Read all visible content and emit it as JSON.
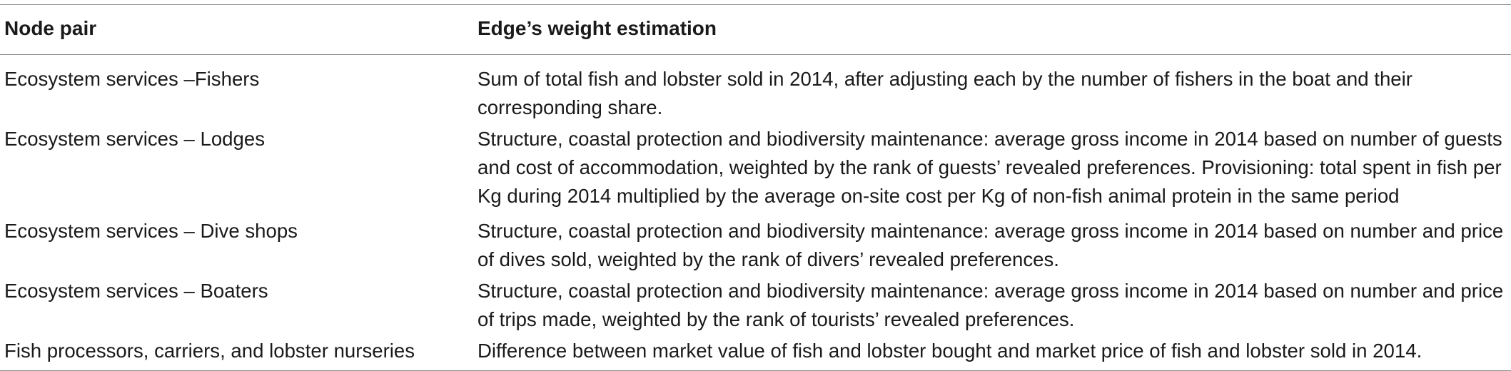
{
  "table": {
    "headers": [
      "Node pair",
      "Edge’s weight estimation"
    ],
    "rows": [
      {
        "node_pair": "Ecosystem services –Fishers",
        "estimation": "Sum of total fish and lobster sold in 2014, after adjusting each by the number of fishers in the boat and their corresponding share."
      },
      {
        "node_pair": "Ecosystem services – Lodges",
        "estimation": "Structure, coastal protection and biodiversity maintenance: average gross income in 2014 based on number of guests and cost of accommodation, weighted by the rank of guests’ revealed preferences. Provisioning: total spent in fish per Kg during 2014 multiplied by the average on-site cost per Kg of non-fish animal protein in the same period"
      },
      {
        "node_pair": "Ecosystem services – Dive shops",
        "estimation": "Structure, coastal protection and biodiversity maintenance: average gross income in 2014 based on number and price of dives sold, weighted by the rank of divers’ revealed preferences."
      },
      {
        "node_pair": "Ecosystem services – Boaters",
        "estimation": "Structure, coastal protection and biodiversity maintenance: average gross income in 2014 based on number and price of trips made, weighted by the rank of tourists’ revealed preferences."
      },
      {
        "node_pair": "Fish processors, carriers, and lobster nurseries",
        "estimation": "Difference between market value of fish and lobster bought and market price of fish and lobster sold in 2014."
      }
    ]
  }
}
